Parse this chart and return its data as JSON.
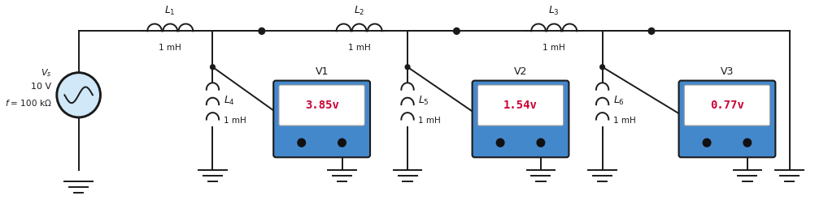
{
  "bg_color": "#ffffff",
  "black": "#1a1a1a",
  "meter_text_color": "#cc0033",
  "meter_body_color": "#4488cc",
  "meter_display_color": "#ffffff",
  "source_circle_color": "#d0e8f8",
  "voltmeters": [
    "V1",
    "V2",
    "V3"
  ],
  "voltmeter_readings": [
    "3.85",
    "1.54",
    "0.77"
  ],
  "voltmeter_unit": "v",
  "top_ind_labels": [
    "$L_1$",
    "$L_2$",
    "$L_3$"
  ],
  "side_ind_labels": [
    "$L_4$",
    "$L_5$",
    "$L_6$"
  ],
  "inductor_val": "1 mH",
  "source_vs": "$V_s$",
  "source_10v": "10 V",
  "source_freq": "$f$ = 100 kΩ",
  "lw": 1.4
}
